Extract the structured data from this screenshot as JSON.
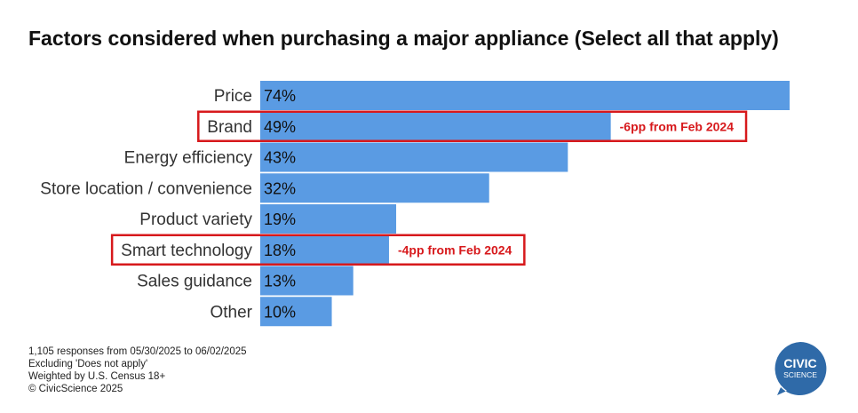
{
  "chart_data": {
    "type": "bar",
    "orientation": "horizontal",
    "title": "Factors considered when purchasing a major appliance (Select all that apply)",
    "categories": [
      "Price",
      "Brand",
      "Energy efficiency",
      "Store location / convenience",
      "Product variety",
      "Smart technology",
      "Sales guidance",
      "Other"
    ],
    "values": [
      74,
      49,
      43,
      32,
      19,
      18,
      13,
      10
    ],
    "value_labels": [
      "74%",
      "49%",
      "43%",
      "32%",
      "19%",
      "18%",
      "13%",
      "10%"
    ],
    "unit": "%",
    "xlim": [
      0,
      74
    ],
    "bar_color": "#5a9be3",
    "highlights": [
      {
        "category": "Brand",
        "annotation": "-6pp from Feb 2024",
        "color": "#d7191c"
      },
      {
        "category": "Smart technology",
        "annotation": "-4pp from Feb 2024",
        "color": "#d7191c"
      }
    ]
  },
  "footnotes": [
    "1,105 responses from 05/30/2025 to 06/02/2025",
    "Excluding 'Does not apply'",
    "Weighted by U.S. Census 18+",
    "© CivicScience 2025"
  ],
  "logo": {
    "line1": "CIVIC",
    "line2": "SCIENCE",
    "color": "#2f6aa8"
  }
}
